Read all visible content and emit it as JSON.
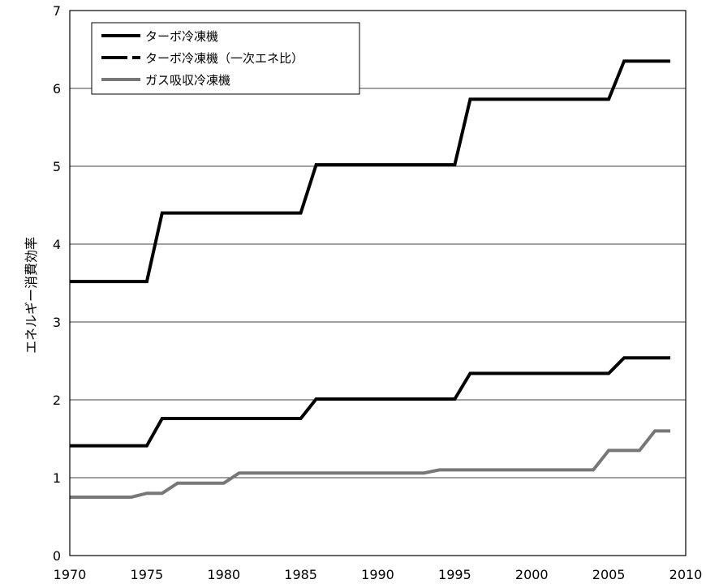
{
  "chart_data": {
    "type": "line",
    "title": "",
    "xlabel": "",
    "ylabel": "エネルギー消費効率",
    "xlim": [
      1970,
      2010
    ],
    "ylim": [
      0,
      7
    ],
    "x_ticks": [
      "1970",
      "1975",
      "1980",
      "1985",
      "1990",
      "1995",
      "2000",
      "2005",
      "2010"
    ],
    "y_ticks": [
      "0",
      "1",
      "2",
      "3",
      "4",
      "5",
      "6",
      "7"
    ],
    "grid": true,
    "legend_position": "top-left",
    "series": [
      {
        "name": "ターボ冷凍機",
        "color": "#000000",
        "style": "solid",
        "points": [
          [
            1970,
            3.52
          ],
          [
            1975,
            3.52
          ],
          [
            1976,
            4.4
          ],
          [
            1985,
            4.4
          ],
          [
            1986,
            5.02
          ],
          [
            1995,
            5.02
          ],
          [
            1996,
            5.86
          ],
          [
            2005,
            5.86
          ],
          [
            2006,
            6.35
          ],
          [
            2009,
            6.35
          ]
        ]
      },
      {
        "name": "ターボ冷凍機（一次エネ比）",
        "color": "#000000",
        "style": "dashed",
        "points": [
          [
            1970,
            1.41
          ],
          [
            1975,
            1.41
          ],
          [
            1976,
            1.76
          ],
          [
            1985,
            1.76
          ],
          [
            1986,
            2.01
          ],
          [
            1995,
            2.01
          ],
          [
            1996,
            2.34
          ],
          [
            2005,
            2.34
          ],
          [
            2006,
            2.54
          ],
          [
            2009,
            2.54
          ]
        ]
      },
      {
        "name": "ガス吸収冷凍機",
        "color": "#777777",
        "style": "solid",
        "points": [
          [
            1970,
            0.75
          ],
          [
            1974,
            0.75
          ],
          [
            1975,
            0.8
          ],
          [
            1976,
            0.8
          ],
          [
            1977,
            0.93
          ],
          [
            1980,
            0.93
          ],
          [
            1981,
            1.06
          ],
          [
            1993,
            1.06
          ],
          [
            1994,
            1.1
          ],
          [
            2004,
            1.1
          ],
          [
            2005,
            1.35
          ],
          [
            2007,
            1.35
          ],
          [
            2008,
            1.6
          ],
          [
            2009,
            1.6
          ]
        ]
      }
    ]
  }
}
